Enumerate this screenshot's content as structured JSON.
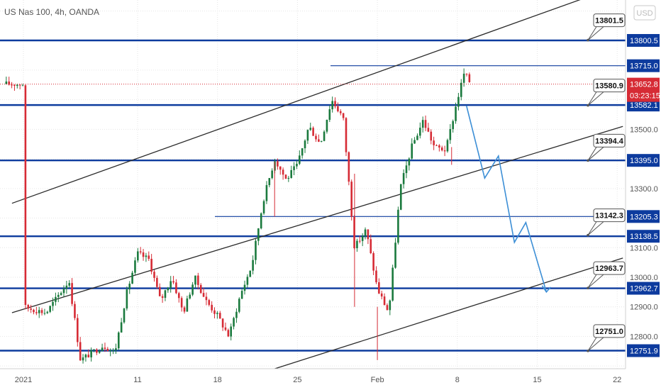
{
  "chart_data": {
    "type": "candlestick",
    "title": "US Nas 100, 4h, OANDA",
    "currency": "USD",
    "ylim": [
      12660,
      13990
    ],
    "y_ticks": [
      12800.0,
      12900.0,
      13000.0,
      13100.0,
      13300.0,
      13500.0
    ],
    "x_ticks": [
      {
        "label": "2021",
        "day": 0
      },
      {
        "label": "11",
        "day": 10
      },
      {
        "label": "18",
        "day": 17
      },
      {
        "label": "25",
        "day": 24
      },
      {
        "label": "Feb",
        "day": 31
      },
      {
        "label": "8",
        "day": 38
      },
      {
        "label": "15",
        "day": 45
      },
      {
        "label": "22",
        "day": 52
      }
    ],
    "horizontal_levels": [
      {
        "label": "13800.5",
        "value": 13800.5,
        "style": "thick"
      },
      {
        "label": "13715.0",
        "value": 13715.0,
        "style": "thin"
      },
      {
        "label": "13582.1",
        "value": 13582.1,
        "style": "thick"
      },
      {
        "label": "13395.0",
        "value": 13395.0,
        "style": "thick"
      },
      {
        "label": "13205.3",
        "value": 13205.3,
        "style": "thin"
      },
      {
        "label": "13138.5",
        "value": 13138.5,
        "style": "thick"
      },
      {
        "label": "12962.7",
        "value": 12962.7,
        "style": "thick"
      },
      {
        "label": "12751.9",
        "value": 12751.9,
        "style": "thick"
      }
    ],
    "callouts": [
      "13801.5",
      "13580.9",
      "13394.4",
      "13142.3",
      "12963.7",
      "12751.0"
    ],
    "current_price": {
      "value": 13652.8,
      "label": "13652.8",
      "countdown": "03:23:15"
    },
    "channel_lines": [
      {
        "name": "upper",
        "from": [
          -1,
          13250
        ],
        "to": [
          52.5,
          13990
        ]
      },
      {
        "name": "middle",
        "from": [
          -1,
          12880
        ],
        "to": [
          52.5,
          13510
        ]
      },
      {
        "name": "lower",
        "from": [
          19.5,
          12660
        ],
        "to": [
          52.5,
          13065
        ]
      }
    ],
    "projection_path": [
      [
        38.8,
        13580
      ],
      [
        40.4,
        13335
      ],
      [
        41.6,
        13410
      ],
      [
        43.0,
        13118
      ],
      [
        44.0,
        13185
      ],
      [
        45.8,
        12950
      ]
    ],
    "anchors": [
      {
        "day": 0,
        "price": 12900
      },
      {
        "day": 2,
        "price": 12880
      },
      {
        "day": 4,
        "price": 12990
      },
      {
        "day": 5,
        "price": 12720
      },
      {
        "day": 7,
        "price": 12770
      },
      {
        "day": 8,
        "price": 12745
      },
      {
        "day": 9,
        "price": 12940
      },
      {
        "day": 10,
        "price": 13080
      },
      {
        "day": 11,
        "price": 13060
      },
      {
        "day": 12,
        "price": 12920
      },
      {
        "day": 13,
        "price": 13000
      },
      {
        "day": 14,
        "price": 12880
      },
      {
        "day": 15,
        "price": 13000
      },
      {
        "day": 16,
        "price": 12920
      },
      {
        "day": 17,
        "price": 12870
      },
      {
        "day": 18,
        "price": 12800
      },
      {
        "day": 19,
        "price": 12940
      },
      {
        "day": 20,
        "price": 13040
      },
      {
        "day": 21,
        "price": 13260
      },
      {
        "day": 22,
        "price": 13400
      },
      {
        "day": 23,
        "price": 13330
      },
      {
        "day": 24,
        "price": 13380
      },
      {
        "day": 25,
        "price": 13510
      },
      {
        "day": 26,
        "price": 13450
      },
      {
        "day": 27,
        "price": 13600
      },
      {
        "day": 28,
        "price": 13540
      },
      {
        "day": 29,
        "price": 13100
      },
      {
        "day": 30,
        "price": 13160
      },
      {
        "day": 31,
        "price": 12960
      },
      {
        "day": 32,
        "price": 12880
      },
      {
        "day": 33,
        "price": 13300
      },
      {
        "day": 34,
        "price": 13440
      },
      {
        "day": 35,
        "price": 13530
      },
      {
        "day": 36,
        "price": 13440
      },
      {
        "day": 37,
        "price": 13430
      },
      {
        "day": 38,
        "price": 13600
      },
      {
        "day": 38.6,
        "price": 13690
      },
      {
        "day": 39.2,
        "price": 13653
      }
    ]
  }
}
